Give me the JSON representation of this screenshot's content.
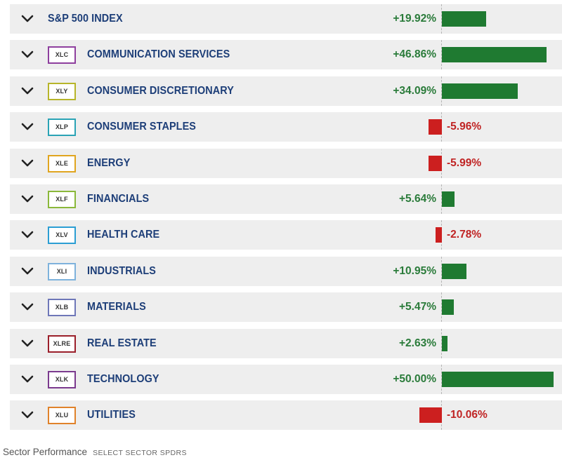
{
  "chart_data": {
    "type": "bar",
    "orientation": "horizontal",
    "title": "Sector Performance",
    "subtitle": "SELECT SECTOR SPDRS",
    "unit": "%",
    "axis_zero": 0,
    "max_abs": 50.0,
    "categories": [
      "S&P 500 INDEX",
      "COMMUNICATION SERVICES",
      "CONSUMER DISCRETIONARY",
      "CONSUMER STAPLES",
      "ENERGY",
      "FINANCIALS",
      "HEALTH CARE",
      "INDUSTRIALS",
      "MATERIALS",
      "REAL ESTATE",
      "TECHNOLOGY",
      "UTILITIES"
    ],
    "values": [
      19.92,
      46.86,
      34.09,
      -5.96,
      -5.99,
      5.64,
      -2.78,
      10.95,
      5.47,
      2.63,
      50.0,
      -10.06
    ]
  },
  "colors": {
    "positive_bar": "#1f7a31",
    "negative_bar": "#cc1f1f",
    "positive_text": "#2a7b3a",
    "negative_text": "#c02424",
    "name_text": "#1d3e78"
  },
  "rows": [
    {
      "ticker": "",
      "name": "S&P 500 INDEX",
      "pct": "+19.92%",
      "value": 19.92,
      "badge_color": ""
    },
    {
      "ticker": "XLC",
      "name": "COMMUNICATION SERVICES",
      "pct": "+46.86%",
      "value": 46.86,
      "badge_color": "#8e3f9e"
    },
    {
      "ticker": "XLY",
      "name": "CONSUMER DISCRETIONARY",
      "pct": "+34.09%",
      "value": 34.09,
      "badge_color": "#b7b52a"
    },
    {
      "ticker": "XLP",
      "name": "CONSUMER STAPLES",
      "pct": "-5.96%",
      "value": -5.96,
      "badge_color": "#2aa3b5"
    },
    {
      "ticker": "XLE",
      "name": "ENERGY",
      "pct": "-5.99%",
      "value": -5.99,
      "badge_color": "#e0a51f"
    },
    {
      "ticker": "XLF",
      "name": "FINANCIALS",
      "pct": "+5.64%",
      "value": 5.64,
      "badge_color": "#8ab83a"
    },
    {
      "ticker": "XLV",
      "name": "HEALTH CARE",
      "pct": "-2.78%",
      "value": -2.78,
      "badge_color": "#2b9ed3"
    },
    {
      "ticker": "XLI",
      "name": "INDUSTRIALS",
      "pct": "+10.95%",
      "value": 10.95,
      "badge_color": "#7eb2dc"
    },
    {
      "ticker": "XLB",
      "name": "MATERIALS",
      "pct": "+5.47%",
      "value": 5.47,
      "badge_color": "#6e77b8"
    },
    {
      "ticker": "XLRE",
      "name": "REAL ESTATE",
      "pct": "+2.63%",
      "value": 2.63,
      "badge_color": "#9b1f2a"
    },
    {
      "ticker": "XLK",
      "name": "TECHNOLOGY",
      "pct": "+50.00%",
      "value": 50.0,
      "badge_color": "#7b3a8e"
    },
    {
      "ticker": "XLU",
      "name": "UTILITIES",
      "pct": "-10.06%",
      "value": -10.06,
      "badge_color": "#e0822a"
    }
  ],
  "footer": {
    "title": "Sector Performance",
    "subtitle": "SELECT SECTOR SPDRS"
  },
  "icons": {
    "expand": "chevron-down-icon"
  }
}
